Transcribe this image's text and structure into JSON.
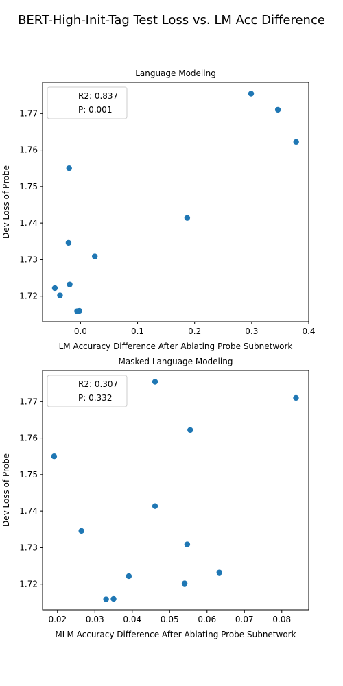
{
  "figure": {
    "suptitle": "BERT-High-Init-Tag Test Loss vs. LM Acc Difference"
  },
  "chart_data": [
    {
      "type": "scatter",
      "title": "Language Modeling",
      "xlabel": "LM Accuracy Difference After Ablating Probe Subnetwork",
      "ylabel": "Dev Loss of Probe",
      "xlim": [
        -0.0666,
        0.4
      ],
      "ylim": [
        1.713,
        1.7785
      ],
      "xticks": [
        0.0,
        0.1,
        0.2,
        0.3,
        0.4
      ],
      "xtick_labels": [
        "0.0",
        "0.1",
        "0.2",
        "0.3",
        "0.4"
      ],
      "yticks": [
        1.72,
        1.73,
        1.74,
        1.75,
        1.76,
        1.77
      ],
      "ytick_labels": [
        "1.72",
        "1.73",
        "1.74",
        "1.75",
        "1.76",
        "1.77"
      ],
      "legend": {
        "placement": "top-left",
        "entries": [
          "R2: 0.837",
          "P: 0.001"
        ]
      },
      "grid": false,
      "color": "#1f77b4",
      "points": [
        {
          "x": 0.299,
          "y": 1.7754
        },
        {
          "x": 0.346,
          "y": 1.771
        },
        {
          "x": 0.378,
          "y": 1.7622
        },
        {
          "x": -0.02,
          "y": 1.755
        },
        {
          "x": 0.187,
          "y": 1.7414
        },
        {
          "x": -0.021,
          "y": 1.7346
        },
        {
          "x": 0.025,
          "y": 1.7309
        },
        {
          "x": -0.019,
          "y": 1.7232
        },
        {
          "x": -0.045,
          "y": 1.7222
        },
        {
          "x": -0.036,
          "y": 1.7202
        },
        {
          "x": -0.006,
          "y": 1.7159
        },
        {
          "x": -0.002,
          "y": 1.716
        }
      ]
    },
    {
      "type": "scatter",
      "title": "Masked Language Modeling",
      "xlabel": "MLM Accuracy Difference After Ablating Probe Subnetwork",
      "ylabel": "Dev Loss of Probe",
      "xlim": [
        0.016,
        0.0872
      ],
      "ylim": [
        1.713,
        1.7785
      ],
      "xticks": [
        0.02,
        0.03,
        0.04,
        0.05,
        0.06,
        0.07,
        0.08
      ],
      "xtick_labels": [
        "0.02",
        "0.03",
        "0.04",
        "0.05",
        "0.06",
        "0.07",
        "0.08"
      ],
      "yticks": [
        1.72,
        1.73,
        1.74,
        1.75,
        1.76,
        1.77
      ],
      "ytick_labels": [
        "1.72",
        "1.73",
        "1.74",
        "1.75",
        "1.76",
        "1.77"
      ],
      "legend": {
        "placement": "top-left",
        "entries": [
          "R2: 0.307",
          "P: 0.332"
        ]
      },
      "grid": false,
      "color": "#1f77b4",
      "points": [
        {
          "x": 0.0461,
          "y": 1.7754
        },
        {
          "x": 0.0838,
          "y": 1.771
        },
        {
          "x": 0.0555,
          "y": 1.7622
        },
        {
          "x": 0.0191,
          "y": 1.755
        },
        {
          "x": 0.0461,
          "y": 1.7414
        },
        {
          "x": 0.0264,
          "y": 1.7346
        },
        {
          "x": 0.0547,
          "y": 1.7309
        },
        {
          "x": 0.0633,
          "y": 1.7232
        },
        {
          "x": 0.0391,
          "y": 1.7222
        },
        {
          "x": 0.054,
          "y": 1.7202
        },
        {
          "x": 0.033,
          "y": 1.7159
        },
        {
          "x": 0.035,
          "y": 1.716
        }
      ]
    }
  ]
}
